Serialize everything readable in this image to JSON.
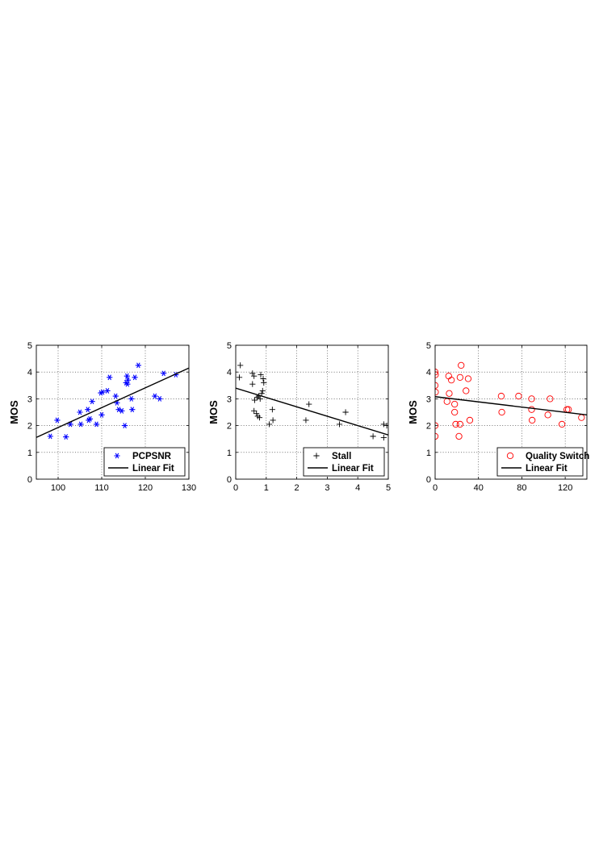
{
  "chart_data": [
    {
      "type": "scatter",
      "ylabel": "MOS",
      "xlabel": "",
      "xlim": [
        95,
        130
      ],
      "ylim": [
        0,
        5
      ],
      "xticks": [
        100,
        110,
        120,
        130
      ],
      "yticks": [
        0,
        1,
        2,
        3,
        4,
        5
      ],
      "grid": true,
      "legend_position": "bottom-right",
      "series": [
        {
          "name": "PCPSNR",
          "marker": "asterisk",
          "color": "#0000ff",
          "points": [
            [
              98.2,
              1.6
            ],
            [
              99.8,
              2.2
            ],
            [
              101.8,
              1.58
            ],
            [
              102.8,
              2.05
            ],
            [
              105.0,
              2.5
            ],
            [
              105.2,
              2.05
            ],
            [
              106.8,
              2.6
            ],
            [
              107.0,
              2.2
            ],
            [
              107.3,
              2.25
            ],
            [
              107.8,
              2.9
            ],
            [
              108.8,
              2.05
            ],
            [
              109.8,
              3.22
            ],
            [
              110.0,
              2.4
            ],
            [
              110.2,
              3.25
            ],
            [
              111.3,
              3.3
            ],
            [
              111.8,
              3.8
            ],
            [
              113.2,
              3.1
            ],
            [
              113.5,
              2.85
            ],
            [
              113.9,
              2.6
            ],
            [
              114.6,
              2.55
            ],
            [
              115.3,
              2.0
            ],
            [
              115.6,
              3.6
            ],
            [
              115.8,
              3.85
            ],
            [
              115.9,
              3.55
            ],
            [
              116.0,
              3.7
            ],
            [
              116.8,
              3.0
            ],
            [
              117.0,
              2.6
            ],
            [
              117.6,
              3.8
            ],
            [
              118.4,
              4.25
            ],
            [
              122.2,
              3.1
            ],
            [
              123.3,
              3.0
            ],
            [
              124.2,
              3.95
            ],
            [
              127.0,
              3.9
            ]
          ]
        },
        {
          "name": "Linear Fit",
          "line": true,
          "color": "#000000",
          "points": [
            [
              95,
              1.56
            ],
            [
              130,
              4.15
            ]
          ]
        }
      ]
    },
    {
      "type": "scatter",
      "ylabel": "MOS",
      "xlabel": "",
      "xlim": [
        0,
        5
      ],
      "ylim": [
        0,
        5
      ],
      "xticks": [
        0,
        1,
        2,
        3,
        4,
        5
      ],
      "yticks": [
        0,
        1,
        2,
        3,
        4,
        5
      ],
      "grid": true,
      "legend_position": "bottom-right",
      "series": [
        {
          "name": "Stall",
          "marker": "plus",
          "color": "#000000",
          "points": [
            [
              0.15,
              4.25
            ],
            [
              0.12,
              3.8
            ],
            [
              0.55,
              3.95
            ],
            [
              0.6,
              3.85
            ],
            [
              0.55,
              3.55
            ],
            [
              0.62,
              2.95
            ],
            [
              0.7,
              3.05
            ],
            [
              0.75,
              3.1
            ],
            [
              0.8,
              3.0
            ],
            [
              0.85,
              3.2
            ],
            [
              0.88,
              3.3
            ],
            [
              0.82,
              3.9
            ],
            [
              0.9,
              3.75
            ],
            [
              0.92,
              3.6
            ],
            [
              0.6,
              2.55
            ],
            [
              0.68,
              2.45
            ],
            [
              0.72,
              2.35
            ],
            [
              0.78,
              2.3
            ],
            [
              1.2,
              2.6
            ],
            [
              1.22,
              2.2
            ],
            [
              1.1,
              2.05
            ],
            [
              2.3,
              2.2
            ],
            [
              2.4,
              2.8
            ],
            [
              3.4,
              2.05
            ],
            [
              3.6,
              2.5
            ],
            [
              4.5,
              1.6
            ],
            [
              4.85,
              1.55
            ],
            [
              4.85,
              2.05
            ],
            [
              4.95,
              2.0
            ]
          ]
        },
        {
          "name": "Linear Fit",
          "line": true,
          "color": "#000000",
          "points": [
            [
              0,
              3.4
            ],
            [
              5,
              1.65
            ]
          ]
        }
      ]
    },
    {
      "type": "scatter",
      "ylabel": "MOS",
      "xlabel": "",
      "xlim": [
        0,
        140
      ],
      "ylim": [
        0,
        5
      ],
      "xticks": [
        0,
        40,
        80,
        120
      ],
      "yticks": [
        0,
        1,
        2,
        3,
        4,
        5
      ],
      "grid": true,
      "legend_position": "bottom-right",
      "series": [
        {
          "name": "Quality Switch",
          "marker": "circle",
          "color": "#ff0000",
          "points": [
            [
              0.0,
              4.0
            ],
            [
              0.3,
              3.9
            ],
            [
              0.0,
              3.5
            ],
            [
              0.3,
              3.25
            ],
            [
              0.0,
              2.0
            ],
            [
              0.0,
              1.6
            ],
            [
              11.0,
              2.9
            ],
            [
              12.5,
              3.85
            ],
            [
              13.0,
              3.2
            ],
            [
              15.0,
              3.7
            ],
            [
              18.0,
              2.8
            ],
            [
              18.0,
              2.5
            ],
            [
              19.0,
              2.05
            ],
            [
              22.0,
              1.6
            ],
            [
              23.0,
              3.8
            ],
            [
              23.0,
              2.05
            ],
            [
              24.0,
              4.25
            ],
            [
              28.5,
              3.3
            ],
            [
              30.5,
              3.75
            ],
            [
              32.0,
              2.2
            ],
            [
              61.0,
              3.1
            ],
            [
              61.5,
              2.5
            ],
            [
              77.0,
              3.1
            ],
            [
              89.0,
              3.0
            ],
            [
              89.0,
              2.6
            ],
            [
              89.5,
              2.2
            ],
            [
              104.0,
              2.4
            ],
            [
              106.0,
              3.0
            ],
            [
              117.0,
              2.05
            ],
            [
              121.5,
              2.6
            ],
            [
              123.0,
              2.6
            ],
            [
              135.0,
              2.3
            ]
          ]
        },
        {
          "name": "Linear Fit",
          "line": true,
          "color": "#000000",
          "points": [
            [
              0,
              3.08
            ],
            [
              140,
              2.4
            ]
          ]
        }
      ]
    }
  ]
}
